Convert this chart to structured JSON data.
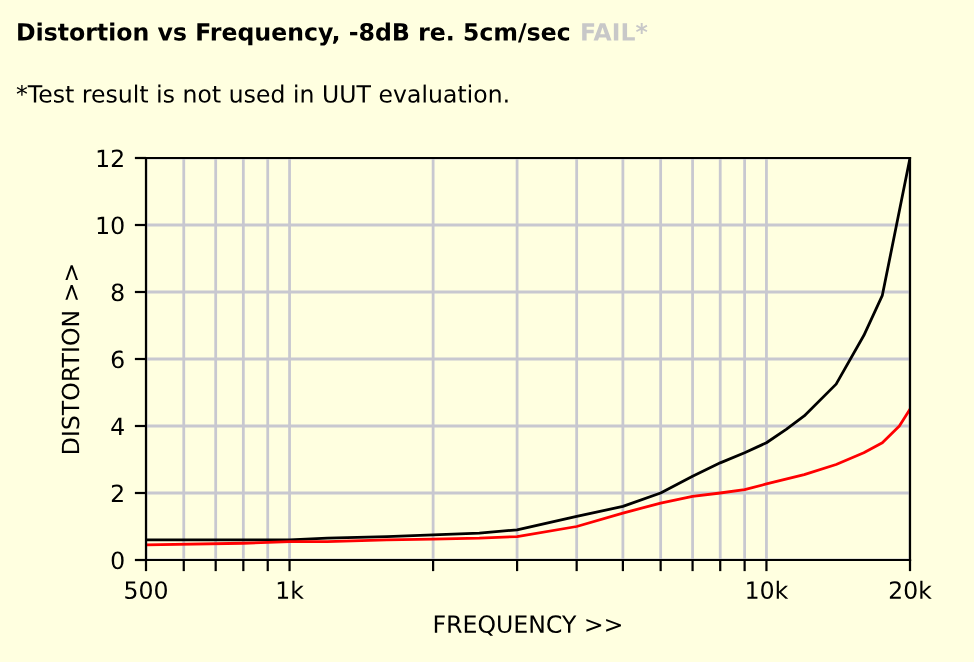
{
  "chart_data": {
    "type": "line",
    "title": "Distortion vs Frequency, -8dB re. 5cm/sec",
    "annotations": [
      "FAIL*",
      "*Test result is not used in UUT evaluation."
    ],
    "xlabel": "FREQUENCY >>",
    "ylabel": "DISTORTION >>",
    "log": "x",
    "grid": true,
    "xlim": [
      500,
      20000
    ],
    "ylim": [
      0,
      12
    ],
    "xticks": [
      {
        "value": 500,
        "label": "500"
      },
      {
        "value": 600,
        "label": null
      },
      {
        "value": 700,
        "label": null
      },
      {
        "value": 800,
        "label": null
      },
      {
        "value": 900,
        "label": null
      },
      {
        "value": 1000,
        "label": "1k"
      },
      {
        "value": 2000,
        "label": null
      },
      {
        "value": 3000,
        "label": null
      },
      {
        "value": 4000,
        "label": null
      },
      {
        "value": 5000,
        "label": null
      },
      {
        "value": 6000,
        "label": null
      },
      {
        "value": 7000,
        "label": null
      },
      {
        "value": 8000,
        "label": null
      },
      {
        "value": 9000,
        "label": null
      },
      {
        "value": 10000,
        "label": "10k"
      },
      {
        "value": 20000,
        "label": "20k"
      }
    ],
    "yticks": [
      0,
      2,
      4,
      6,
      8,
      10,
      12
    ],
    "series": [
      {
        "color": "#000000",
        "x": [
          500,
          800,
          1000,
          1200,
          1600,
          2000,
          2500,
          3000,
          4000,
          5000,
          6000,
          7000,
          8000,
          9000,
          10000,
          11000,
          12000,
          14000,
          16000,
          17500,
          20000
        ],
        "values": [
          0.6,
          0.6,
          0.6,
          0.65,
          0.7,
          0.75,
          0.8,
          0.9,
          1.3,
          1.6,
          2.0,
          2.5,
          2.9,
          3.2,
          3.5,
          3.9,
          4.3,
          5.25,
          6.7,
          7.9,
          12
        ]
      },
      {
        "color": "#ff0000",
        "x": [
          500,
          800,
          1000,
          1200,
          1600,
          2000,
          2500,
          3000,
          4000,
          5000,
          6000,
          7000,
          8000,
          9000,
          10000,
          12000,
          14000,
          16000,
          17500,
          19000,
          20000
        ],
        "values": [
          0.45,
          0.5,
          0.55,
          0.55,
          0.6,
          0.62,
          0.65,
          0.7,
          1.0,
          1.4,
          1.7,
          1.9,
          2.0,
          2.1,
          2.27,
          2.55,
          2.85,
          3.2,
          3.5,
          4.0,
          4.5
        ]
      }
    ]
  }
}
